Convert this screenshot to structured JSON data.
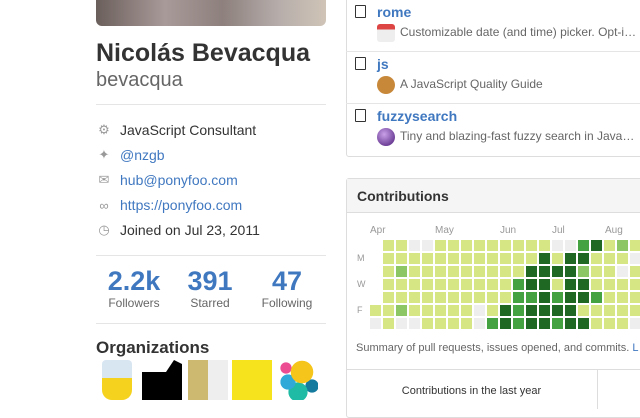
{
  "profile": {
    "name": "Nicolás Bevacqua",
    "login": "bevacqua",
    "details": [
      {
        "icon": "organization-icon",
        "text": "JavaScript Consultant",
        "link": false
      },
      {
        "icon": "twitter-icon",
        "text": "@nzgb",
        "link": true
      },
      {
        "icon": "mail-icon",
        "text": "hub@ponyfoo.com",
        "link": true
      },
      {
        "icon": "link-icon",
        "text": "https://ponyfoo.com",
        "link": true
      },
      {
        "icon": "clock-icon",
        "text": "Joined on Jul 23, 2011",
        "link": false
      }
    ],
    "stats": [
      {
        "value": "2.2k",
        "label": "Followers"
      },
      {
        "value": "391",
        "label": "Starred"
      },
      {
        "value": "47",
        "label": "Following"
      }
    ],
    "organizations_title": "Organizations",
    "organizations": [
      "js-org",
      "black-creature-org",
      "javascript-book-org",
      "nodeschool-org",
      "elastic-org"
    ]
  },
  "repos": [
    {
      "name": "rome",
      "icon": "calendar-emoji",
      "description": "Customizable date (and time) picker. Opt-i…"
    },
    {
      "name": "js",
      "icon": "palette-emoji",
      "description": "A JavaScript Quality Guide"
    },
    {
      "name": "fuzzysearch",
      "icon": "crystal-ball-emoji",
      "description": "Tiny and blazing-fast fuzzy search in Java…"
    }
  ],
  "contributions": {
    "title": "Contributions",
    "months": [
      "Apr",
      "May",
      "Jun",
      "Jul",
      "Aug"
    ],
    "days": [
      "M",
      "W",
      "F"
    ],
    "colors": [
      "#eeeeee",
      "#d6e685",
      "#8cc665",
      "#44a340",
      "#1e6823"
    ],
    "weeks_levels_by_day": [
      [
        null,
        1,
        1,
        0,
        0,
        1,
        1,
        1,
        1,
        1,
        1,
        1,
        1,
        1,
        0,
        0,
        3,
        4,
        1,
        2,
        1
      ],
      [
        null,
        1,
        1,
        1,
        1,
        1,
        1,
        1,
        1,
        1,
        1,
        1,
        1,
        4,
        1,
        4,
        4,
        1,
        1,
        1,
        0
      ],
      [
        null,
        1,
        2,
        1,
        1,
        1,
        1,
        1,
        1,
        1,
        1,
        1,
        4,
        4,
        4,
        4,
        2,
        1,
        1,
        0,
        1
      ],
      [
        null,
        1,
        1,
        1,
        1,
        1,
        1,
        1,
        1,
        1,
        1,
        3,
        4,
        4,
        1,
        4,
        4,
        1,
        1,
        1,
        1
      ],
      [
        null,
        1,
        1,
        1,
        1,
        1,
        1,
        1,
        1,
        1,
        1,
        3,
        3,
        4,
        3,
        4,
        4,
        3,
        1,
        1,
        1
      ],
      [
        1,
        1,
        2,
        1,
        1,
        1,
        1,
        1,
        0,
        1,
        4,
        3,
        4,
        4,
        4,
        4,
        1,
        1,
        1,
        1,
        1
      ],
      [
        0,
        1,
        0,
        0,
        1,
        1,
        1,
        1,
        0,
        3,
        4,
        3,
        4,
        4,
        3,
        4,
        4,
        1,
        1,
        1,
        0
      ]
    ],
    "summary": "Summary of pull requests, issues opened, and commits.",
    "summary_link": "L",
    "last_year_label": "Contributions in the last year"
  }
}
